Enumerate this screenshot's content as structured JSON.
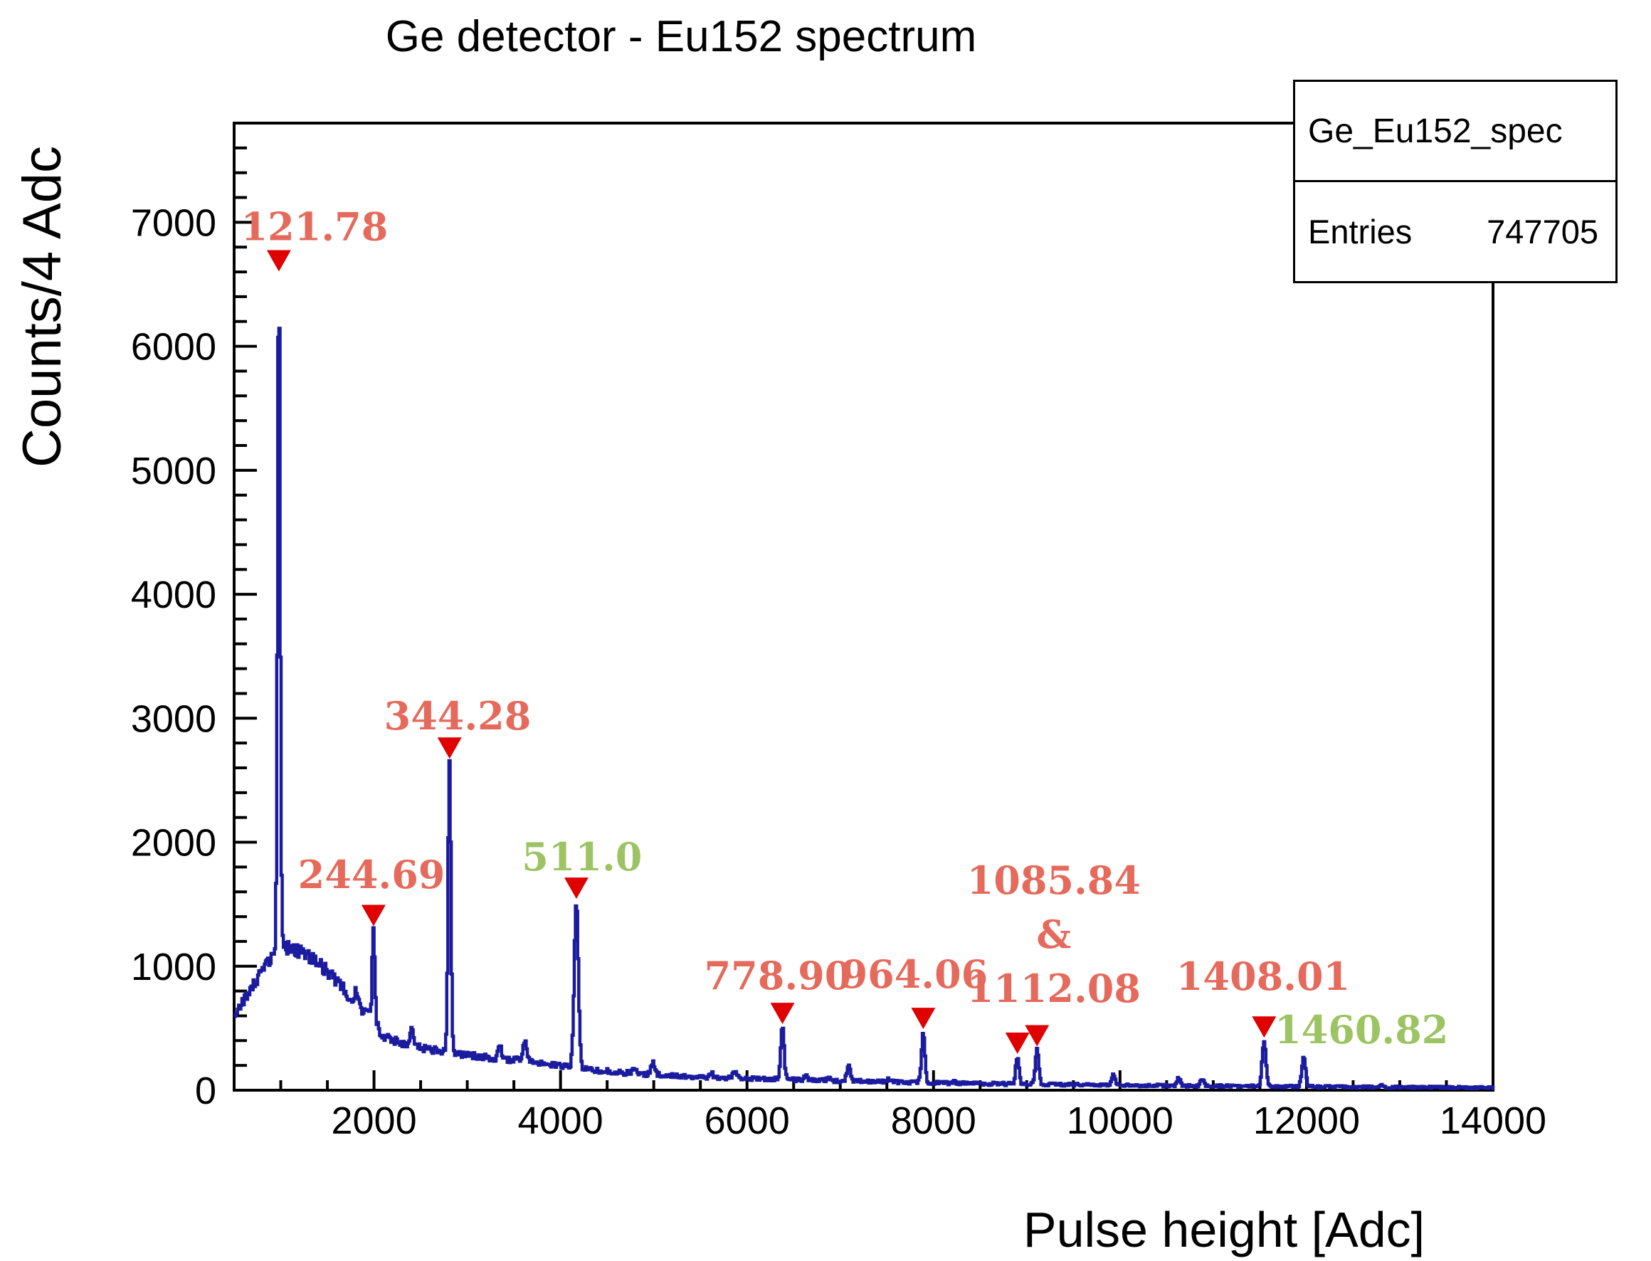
{
  "header": {
    "title": "Ge detector - Eu152 spectrum"
  },
  "stats_box": {
    "name": "Ge_Eu152_spec",
    "entries_label": "Entries",
    "entries_value": "747705"
  },
  "axes": {
    "x": {
      "label": "Pulse height [Adc]",
      "min": 500,
      "max": 14000,
      "major_ticks": [
        2000,
        4000,
        6000,
        8000,
        10000,
        12000,
        14000
      ],
      "minor_step": 500
    },
    "y": {
      "label": "Counts/4 Adc",
      "min": 0,
      "max": 7800,
      "major_ticks": [
        0,
        1000,
        2000,
        3000,
        4000,
        5000,
        6000,
        7000
      ],
      "minor_step": 200
    }
  },
  "colors": {
    "curve": "#1b1b9f",
    "marker": "#e00000",
    "label_red": "#e56a5c",
    "label_green": "#9dc462",
    "axis": "#000000",
    "background": "#ffffff"
  },
  "chart_data": {
    "type": "line",
    "title": "Ge detector - Eu152 spectrum",
    "xlabel": "Pulse height [Adc]",
    "ylabel": "Counts/4 Adc",
    "xlim": [
      500,
      14000
    ],
    "ylim": [
      0,
      7800
    ],
    "grid": false,
    "bin_step_adc": 12,
    "histogram_name": "Ge_Eu152_spec",
    "entries": 747705,
    "labeled_peaks": [
      {
        "label": "121.78",
        "adc": 980,
        "counts": 6580,
        "marker": true,
        "color": "red",
        "sigma": 14,
        "label_at": {
          "adc": 1362,
          "counts": 6960
        },
        "lines": [
          "121.78"
        ]
      },
      {
        "label": "244.69",
        "adc": 1995,
        "counts": 1300,
        "marker": true,
        "color": "red",
        "sigma": 14,
        "label_at": {
          "adc": 1973,
          "counts": 1733
        },
        "lines": [
          "244.69"
        ]
      },
      {
        "label": "344.28",
        "adc": 2810,
        "counts": 2650,
        "marker": true,
        "color": "red",
        "sigma": 15,
        "label_at": {
          "adc": 2896,
          "counts": 3013
        },
        "lines": [
          "344.28"
        ]
      },
      {
        "label": "511.0",
        "adc": 4170,
        "counts": 1520,
        "marker": true,
        "color": "green",
        "sigma": 22,
        "label_at": {
          "adc": 4230,
          "counts": 1877
        },
        "lines": [
          "511.0"
        ]
      },
      {
        "label": "778.90",
        "adc": 6380,
        "counts": 510,
        "marker": true,
        "color": "red",
        "sigma": 18,
        "label_at": {
          "adc": 6330,
          "counts": 918
        },
        "lines": [
          "778.90"
        ]
      },
      {
        "label": "964.06",
        "adc": 7890,
        "counts": 470,
        "marker": true,
        "color": "red",
        "sigma": 18,
        "label_at": {
          "adc": 7795,
          "counts": 930
        },
        "lines": [
          "964.06"
        ]
      },
      {
        "label": "1085.84",
        "adc": 8900,
        "counts": 270,
        "marker": true,
        "color": "red",
        "sigma": 18,
        "label_at": {
          "adc": 9290,
          "counts": 1688
        },
        "lines": [
          "1085.84",
          "&",
          "1112.08"
        ]
      },
      {
        "label": "1112.08",
        "adc": 9110,
        "counts": 330,
        "marker": true,
        "color": "red",
        "sigma": 18,
        "label_at": null,
        "lines": []
      },
      {
        "label": "1408.01",
        "adc": 11545,
        "counts": 400,
        "marker": true,
        "color": "red",
        "sigma": 20,
        "label_at": {
          "adc": 11535,
          "counts": 912
        },
        "lines": [
          "1408.01"
        ]
      },
      {
        "label": "1460.82",
        "adc": 11970,
        "counts": 260,
        "marker": false,
        "color": "green",
        "sigma": 20,
        "label_at": {
          "adc": 12590,
          "counts": 482
        },
        "lines": [
          "1460.82"
        ]
      }
    ],
    "unlabeled_peaks": [
      [
        1810,
        800
      ],
      [
        2400,
        490
      ],
      [
        3350,
        370
      ],
      [
        3620,
        400
      ],
      [
        4790,
        185
      ],
      [
        4990,
        230
      ],
      [
        5620,
        135
      ],
      [
        5870,
        150
      ],
      [
        6630,
        115
      ],
      [
        6890,
        108
      ],
      [
        7090,
        210
      ],
      [
        7520,
        90
      ],
      [
        8220,
        80
      ],
      [
        9930,
        130
      ],
      [
        10630,
        100
      ],
      [
        10880,
        90
      ],
      [
        12800,
        40
      ]
    ],
    "continuum": [
      [
        500,
        600
      ],
      [
        650,
        780
      ],
      [
        800,
        950
      ],
      [
        900,
        1070
      ],
      [
        1000,
        1130
      ],
      [
        1100,
        1150
      ],
      [
        1250,
        1110
      ],
      [
        1400,
        1030
      ],
      [
        1550,
        920
      ],
      [
        1700,
        790
      ],
      [
        1850,
        660
      ],
      [
        2000,
        560
      ],
      [
        2100,
        430
      ],
      [
        2300,
        380
      ],
      [
        2600,
        330
      ],
      [
        2900,
        290
      ],
      [
        3200,
        265
      ],
      [
        3500,
        245
      ],
      [
        3800,
        215
      ],
      [
        4100,
        190
      ],
      [
        4400,
        160
      ],
      [
        4700,
        140
      ],
      [
        5000,
        125
      ],
      [
        5500,
        108
      ],
      [
        6000,
        96
      ],
      [
        6500,
        85
      ],
      [
        7000,
        76
      ],
      [
        7500,
        67
      ],
      [
        8000,
        60
      ],
      [
        8500,
        53
      ],
      [
        9000,
        48
      ],
      [
        9500,
        44
      ],
      [
        10000,
        40
      ],
      [
        10500,
        37
      ],
      [
        11000,
        34
      ],
      [
        11500,
        31
      ],
      [
        12000,
        29
      ],
      [
        12500,
        26
      ],
      [
        13000,
        24
      ],
      [
        13500,
        22
      ],
      [
        14000,
        20
      ]
    ]
  }
}
